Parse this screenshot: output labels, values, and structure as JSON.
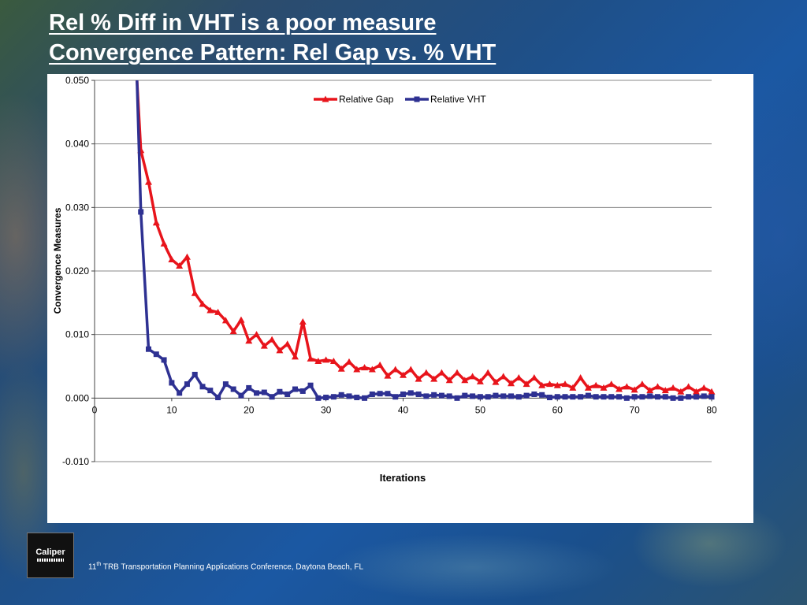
{
  "slide": {
    "title_line1": "Rel % Diff in VHT is a poor measure",
    "title_line2": "Convergence Pattern: Rel Gap vs. % VHT",
    "footer_ordinal": "11",
    "footer_suffix": "th",
    "footer_text": " TRB Transportation Planning Applications Conference, Daytona Beach, FL",
    "logo_text": "Caliper"
  },
  "colors": {
    "relative_gap": "#e8141b",
    "relative_vht": "#2e3192",
    "gridline": "#888888"
  },
  "chart_data": {
    "type": "line",
    "title": "",
    "xlabel": "Iterations",
    "ylabel": "Convergence  Measures",
    "xlim": [
      0,
      80
    ],
    "ylim": [
      -0.01,
      0.05
    ],
    "x_ticks": [
      "0",
      "10",
      "20",
      "30",
      "40",
      "50",
      "60",
      "70",
      "80"
    ],
    "y_ticks": [
      "-0.010",
      "0.000",
      "0.010",
      "0.020",
      "0.030",
      "0.040",
      "0.050"
    ],
    "legend_position": "top-center",
    "grid": "horizontal",
    "series": [
      {
        "name": "Relative Gap",
        "marker": "triangle",
        "x": [
          5.5,
          6,
          7,
          8,
          9,
          10,
          11,
          12,
          13,
          14,
          15,
          16,
          17,
          18,
          19,
          20,
          21,
          22,
          23,
          24,
          25,
          26,
          27,
          28,
          29,
          30,
          31,
          32,
          33,
          34,
          35,
          36,
          37,
          38,
          39,
          40,
          41,
          42,
          43,
          44,
          45,
          46,
          47,
          48,
          49,
          50,
          51,
          52,
          53,
          54,
          55,
          56,
          57,
          58,
          59,
          60,
          61,
          62,
          63,
          64,
          65,
          66,
          67,
          68,
          69,
          70,
          71,
          72,
          73,
          74,
          75,
          76,
          77,
          78,
          79,
          80
        ],
        "values": [
          0.05,
          0.039,
          0.034,
          0.0276,
          0.0243,
          0.0218,
          0.0208,
          0.0222,
          0.0165,
          0.0148,
          0.0138,
          0.0135,
          0.0122,
          0.0105,
          0.0123,
          0.009,
          0.01,
          0.0082,
          0.0092,
          0.0075,
          0.0085,
          0.0065,
          0.012,
          0.0062,
          0.0058,
          0.006,
          0.0058,
          0.0046,
          0.0057,
          0.0045,
          0.0048,
          0.0045,
          0.0052,
          0.0035,
          0.0045,
          0.0036,
          0.0045,
          0.003,
          0.004,
          0.003,
          0.004,
          0.0028,
          0.004,
          0.0028,
          0.0034,
          0.0026,
          0.004,
          0.0025,
          0.0034,
          0.0023,
          0.0032,
          0.0022,
          0.0032,
          0.002,
          0.0022,
          0.002,
          0.0022,
          0.0016,
          0.0032,
          0.0016,
          0.002,
          0.0016,
          0.0022,
          0.0014,
          0.0018,
          0.0013,
          0.0022,
          0.0012,
          0.0018,
          0.0012,
          0.0016,
          0.001,
          0.0018,
          0.001,
          0.0016,
          0.001
        ]
      },
      {
        "name": "Relative VHT",
        "marker": "square",
        "x": [
          5.5,
          6,
          7,
          8,
          9,
          10,
          11,
          12,
          13,
          14,
          15,
          16,
          17,
          18,
          19,
          20,
          21,
          22,
          23,
          24,
          25,
          26,
          27,
          28,
          29,
          30,
          31,
          32,
          33,
          34,
          35,
          36,
          37,
          38,
          39,
          40,
          41,
          42,
          43,
          44,
          45,
          46,
          47,
          48,
          49,
          50,
          51,
          52,
          53,
          54,
          55,
          56,
          57,
          58,
          59,
          60,
          61,
          62,
          63,
          64,
          65,
          66,
          67,
          68,
          69,
          70,
          71,
          72,
          73,
          74,
          75,
          76,
          77,
          78,
          79,
          80
        ],
        "values": [
          0.05,
          0.0293,
          0.0077,
          0.0069,
          0.006,
          0.0024,
          0.0008,
          0.0022,
          0.0037,
          0.0018,
          0.0012,
          0.0001,
          0.0022,
          0.0014,
          0.0004,
          0.0016,
          0.0008,
          0.0009,
          0.0002,
          0.001,
          0.0006,
          0.0014,
          0.0011,
          0.002,
          0.0,
          0.0001,
          0.0002,
          0.0005,
          0.0003,
          0.0001,
          0.0,
          0.0006,
          0.0007,
          0.0007,
          0.0002,
          0.0006,
          0.0008,
          0.0006,
          0.0003,
          0.0005,
          0.0004,
          0.0003,
          0.0,
          0.0004,
          0.0003,
          0.0002,
          0.0002,
          0.0004,
          0.0003,
          0.0003,
          0.0002,
          0.0004,
          0.0006,
          0.0005,
          0.0001,
          0.0002,
          0.0002,
          0.0002,
          0.0002,
          0.0004,
          0.0002,
          0.0002,
          0.0002,
          0.0002,
          0.0,
          0.0002,
          0.0002,
          0.0003,
          0.0002,
          0.0002,
          0.0,
          0.0,
          0.0002,
          0.0002,
          0.0003,
          0.0002
        ]
      }
    ]
  }
}
